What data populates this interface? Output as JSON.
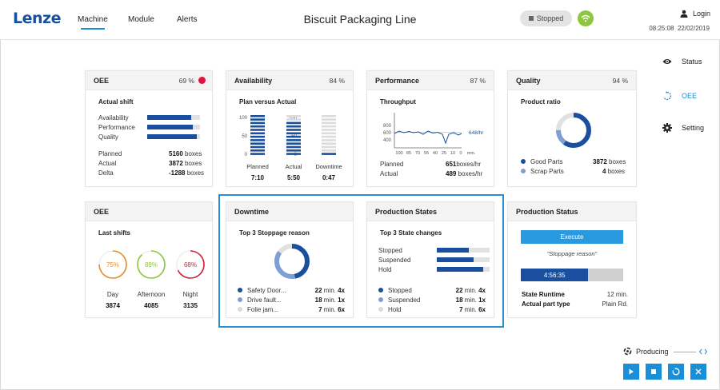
{
  "header": {
    "logo": "Lenze",
    "nav": [
      "Machine",
      "Module",
      "Alerts"
    ],
    "title": "Biscuit Packaging Line",
    "state": "Stopped",
    "login": "Login",
    "time": "08:25:08",
    "date": "22/02/2019"
  },
  "side_menu": [
    "Status",
    "OEE",
    "Setting"
  ],
  "oee": {
    "title": "OEE",
    "pct": "69 %",
    "subtitle": "Actual shift",
    "bars": [
      {
        "label": "Availability",
        "value": 0.84
      },
      {
        "label": "Performance",
        "value": 0.87
      },
      {
        "label": "Quality",
        "value": 0.94
      }
    ],
    "rows": [
      {
        "label": "Planned",
        "value": "5160",
        "unit": "boxes"
      },
      {
        "label": "Actual",
        "value": "3872",
        "unit": "boxes"
      },
      {
        "label": "Delta",
        "value": "-1288",
        "unit": "boxes"
      }
    ]
  },
  "availability": {
    "title": "Availability",
    "pct": "84 %",
    "subtitle": "Plan versus Actual",
    "ticks": [
      "100",
      "50",
      "0"
    ],
    "columns": [
      {
        "label": "Planned",
        "value": "7:10",
        "fill": 1.0
      },
      {
        "label": "Actual",
        "value": "5:50",
        "fill": 0.82
      },
      {
        "label": "Downtime",
        "value": "0:47",
        "fill": 0.12
      }
    ]
  },
  "performance": {
    "title": "Performance",
    "pct": "87 %",
    "subtitle": "Throughput",
    "yticks": [
      "800",
      "600",
      "400"
    ],
    "xticks": [
      "100",
      "85",
      "70",
      "55",
      "40",
      "25",
      "10",
      "0"
    ],
    "xunit": "min.",
    "target_label": "648/hr",
    "rows": [
      {
        "label": "Planned",
        "value": "651",
        "unit": "boxes/hr"
      },
      {
        "label": "Actual",
        "value": "489",
        "unit": "boxes/hr"
      }
    ]
  },
  "quality": {
    "title": "Quality",
    "pct": "94 %",
    "subtitle": "Product ratio",
    "legend": [
      {
        "label": "Good Parts",
        "value": "3872",
        "unit": "boxes",
        "color": "#1a4fa0",
        "share": 0.6
      },
      {
        "label": "Scrap Parts",
        "value": "4",
        "unit": "boxes",
        "color": "#7f9fd4",
        "share": 0.15
      }
    ]
  },
  "oee_shifts": {
    "title": "OEE",
    "subtitle": "Last shifts",
    "shifts": [
      {
        "pct": "75%",
        "label": "Day",
        "value": "3874",
        "color": "#e8892a",
        "share": 0.75
      },
      {
        "pct": "88%",
        "label": "Afternoon",
        "value": "4085",
        "color": "#8dc63f",
        "share": 0.88
      },
      {
        "pct": "68%",
        "label": "Night",
        "value": "3135",
        "color": "#d0243c",
        "share": 0.68
      }
    ]
  },
  "downtime": {
    "title": "Downtime",
    "subtitle": "Top 3 Stoppage reason",
    "items": [
      {
        "label": "Safety Door...",
        "time": "22",
        "unit": "min.",
        "count": "4x",
        "color": "#1a4fa0",
        "share": 0.47
      },
      {
        "label": "Drive fault...",
        "time": "18",
        "unit": "min.",
        "count": "1x",
        "color": "#7f9fd4",
        "share": 0.38
      },
      {
        "label": "Folie jam...",
        "time": "7",
        "unit": "min.",
        "count": "6x",
        "color": "#d9d9d9",
        "share": 0.15
      }
    ]
  },
  "production_states": {
    "title": "Production States",
    "subtitle": "Top 3 State changes",
    "bars": [
      {
        "label": "Stopped",
        "value": 0.6
      },
      {
        "label": "Suspended",
        "value": 0.7
      },
      {
        "label": "Hold",
        "value": 0.88
      }
    ],
    "items": [
      {
        "label": "Stopped",
        "time": "22",
        "unit": "min.",
        "count": "4x",
        "color": "#1a4fa0"
      },
      {
        "label": "Suspended",
        "time": "18",
        "unit": "min.",
        "count": "1x",
        "color": "#7f9fd4"
      },
      {
        "label": "Hold",
        "time": "7",
        "unit": "min.",
        "count": "6x",
        "color": "#d9d9d9"
      }
    ]
  },
  "production_status": {
    "title": "Production Status",
    "execute": "Execute",
    "reason": "\"Stoppage reason\"",
    "timer": "4:56:35",
    "timer_fill": 0.66,
    "rows": [
      {
        "label": "State Runtime",
        "value": "12 min."
      },
      {
        "label": "Actual part type",
        "value": "Plain Rd."
      }
    ]
  },
  "footer": {
    "producing": "Producing",
    "buttons": [
      "play-icon",
      "stop-icon",
      "reset-icon",
      "close-icon"
    ]
  }
}
